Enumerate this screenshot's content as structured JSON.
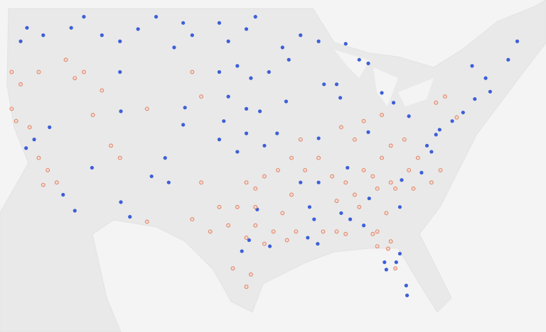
{
  "map": {
    "series": [
      {
        "color": "#3d5fd8",
        "filled": true,
        "points": [
          [
            -122.3,
            47.6
          ],
          [
            -123,
            46.5
          ],
          [
            -120.5,
            47
          ],
          [
            -117.4,
            47.6
          ],
          [
            -116,
            48.5
          ],
          [
            -114,
            47
          ],
          [
            -112,
            46.5
          ],
          [
            -110,
            47.5
          ],
          [
            -108,
            48.5
          ],
          [
            -105,
            48
          ],
          [
            -106,
            46
          ],
          [
            -104,
            47
          ],
          [
            -101,
            48
          ],
          [
            -100,
            46.5
          ],
          [
            -98,
            47.5
          ],
          [
            -97,
            48.5
          ],
          [
            -99,
            44.5
          ],
          [
            -101,
            44
          ],
          [
            -97.5,
            43.5
          ],
          [
            -100,
            42
          ],
          [
            -98,
            41
          ],
          [
            -96.5,
            40.8
          ],
          [
            -100.5,
            40
          ],
          [
            -98,
            39
          ],
          [
            -96,
            38
          ],
          [
            -99,
            37.5
          ],
          [
            -101,
            38.5
          ],
          [
            -95.5,
            44
          ],
          [
            -94,
            46
          ],
          [
            -93.3,
            45
          ],
          [
            -92,
            47
          ],
          [
            -90,
            46.5
          ],
          [
            -87,
            46.3
          ],
          [
            -85.5,
            45
          ],
          [
            -84.5,
            44.7
          ],
          [
            -83,
            42.3
          ],
          [
            -87.6,
            41.9
          ],
          [
            -90,
            38.6
          ],
          [
            -88,
            43
          ],
          [
            -89.4,
            43
          ],
          [
            -93.6,
            41.6
          ],
          [
            -94.6,
            39
          ],
          [
            -122.4,
            37.8
          ],
          [
            -121.5,
            38.5
          ],
          [
            -119.8,
            39.5
          ],
          [
            -118.3,
            34
          ],
          [
            -117,
            32.7
          ],
          [
            -111.9,
            33.4
          ],
          [
            -110.9,
            32.2
          ],
          [
            -106.6,
            35
          ],
          [
            -105,
            39.7
          ],
          [
            -107,
            37
          ],
          [
            -108.5,
            35.5
          ],
          [
            -111.9,
            40.8
          ],
          [
            -115.1,
            36.2
          ],
          [
            -112,
            44
          ],
          [
            -97.7,
            30.3
          ],
          [
            -96.8,
            32.8
          ],
          [
            -95.4,
            29.8
          ],
          [
            -98.5,
            29.4
          ],
          [
            -90,
            35
          ],
          [
            -91,
            33
          ],
          [
            -90.5,
            32
          ],
          [
            -87.5,
            32.5
          ],
          [
            -86.5,
            32
          ],
          [
            -85,
            31.5
          ],
          [
            -84.4,
            33.7
          ],
          [
            -86.8,
            36.2
          ],
          [
            -84.5,
            39.1
          ],
          [
            -81.7,
            41.5
          ],
          [
            -80,
            40.4
          ],
          [
            -75.2,
            40
          ],
          [
            -74,
            40.7
          ],
          [
            -77,
            38.9
          ],
          [
            -76.6,
            39.3
          ],
          [
            -78,
            38
          ],
          [
            -77.5,
            37.5
          ],
          [
            -80.8,
            35.2
          ],
          [
            -78.6,
            35.8
          ],
          [
            -81,
            33
          ],
          [
            -71,
            42.4
          ],
          [
            -72.7,
            41.8
          ],
          [
            -73,
            44.5
          ],
          [
            -71.5,
            43.5
          ],
          [
            -69,
            45
          ],
          [
            -68,
            46.5
          ],
          [
            -80.2,
            25.8
          ],
          [
            -80.3,
            26.6
          ],
          [
            -81.4,
            28.5
          ],
          [
            -82.5,
            27.9
          ],
          [
            -82.7,
            28.5
          ],
          [
            -81,
            29.2
          ],
          [
            -90.1,
            30
          ],
          [
            -91.2,
            30.5
          ],
          [
            -92,
            35
          ],
          [
            -104.8,
            41.1
          ]
        ]
      },
      {
        "color": "#e0876c",
        "filled": false,
        "points": [
          [
            -124,
            41
          ],
          [
            -123.5,
            40
          ],
          [
            -122,
            39.5
          ],
          [
            -121,
            37
          ],
          [
            -120,
            36
          ],
          [
            -119,
            35
          ],
          [
            -120.5,
            34.8
          ],
          [
            -124,
            44
          ],
          [
            -123,
            43
          ],
          [
            -121,
            44
          ],
          [
            -118,
            45
          ],
          [
            -117,
            43.5
          ],
          [
            -116,
            44
          ],
          [
            -114,
            42.5
          ],
          [
            -113,
            38
          ],
          [
            -115,
            40.5
          ],
          [
            -112,
            37
          ],
          [
            -109,
            41
          ],
          [
            -104,
            44
          ],
          [
            -103,
            42
          ],
          [
            -109,
            31.8
          ],
          [
            -104,
            32
          ],
          [
            -102,
            31
          ],
          [
            -100,
            31.5
          ],
          [
            -99,
            33
          ],
          [
            -97,
            33
          ],
          [
            -95,
            31
          ],
          [
            -94,
            32.5
          ],
          [
            -97,
            34.5
          ],
          [
            -96,
            35.5
          ],
          [
            -98,
            35
          ],
          [
            -94.5,
            36
          ],
          [
            -93,
            37
          ],
          [
            -92,
            38.5
          ],
          [
            -93,
            34
          ],
          [
            -91.5,
            36
          ],
          [
            -90,
            37
          ],
          [
            -88.5,
            35.5
          ],
          [
            -88,
            33.5
          ],
          [
            -89.5,
            31
          ],
          [
            -88,
            31
          ],
          [
            -86,
            34
          ],
          [
            -87,
            35
          ],
          [
            -85,
            36
          ],
          [
            -84,
            35.5
          ],
          [
            -83,
            37
          ],
          [
            -82,
            38
          ],
          [
            -80.5,
            38.5
          ],
          [
            -79,
            37
          ],
          [
            -80,
            36
          ],
          [
            -82,
            35
          ],
          [
            -83.5,
            34.5
          ],
          [
            -82.5,
            32.5
          ],
          [
            -83.5,
            31
          ],
          [
            -84,
            30.8
          ],
          [
            -82,
            30.2
          ],
          [
            -81.5,
            34.5
          ],
          [
            -79.5,
            34.5
          ],
          [
            -77.5,
            35
          ],
          [
            -76.5,
            36
          ],
          [
            -85.5,
            33
          ],
          [
            -87,
            30.8
          ],
          [
            -92.5,
            31
          ],
          [
            -93.5,
            30.3
          ],
          [
            -97.5,
            27.5
          ],
          [
            -98,
            26.5
          ],
          [
            -99.5,
            28
          ],
          [
            -101,
            33
          ],
          [
            -103,
            35
          ],
          [
            -86,
            38.5
          ],
          [
            -87.5,
            39.5
          ],
          [
            -85,
            40
          ],
          [
            -83,
            40.5
          ],
          [
            -74.7,
            40.3
          ],
          [
            -76,
            42
          ],
          [
            -77,
            41.5
          ],
          [
            -81.5,
            28
          ],
          [
            -82.3,
            29.6
          ],
          [
            -83.5,
            29.8
          ],
          [
            -98,
            30.5
          ],
          [
            -96,
            30
          ],
          [
            -97,
            31.5
          ]
        ]
      }
    ]
  }
}
